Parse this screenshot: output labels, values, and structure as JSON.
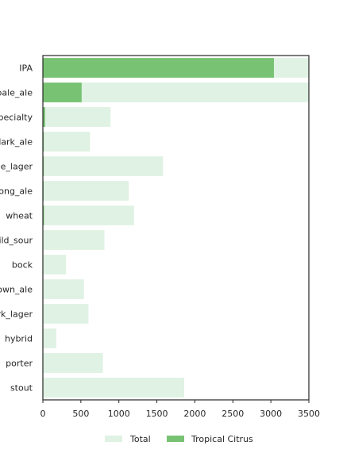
{
  "chart_data": {
    "type": "bar",
    "orientation": "horizontal",
    "categories": [
      "IPA",
      "pale_ale",
      "specialty",
      "dark_ale",
      "pale_lager",
      "strong_ale",
      "wheat",
      "wild_sour",
      "bock",
      "brown_ale",
      "dark_lager",
      "hybrid",
      "porter",
      "stout"
    ],
    "series": [
      {
        "name": "Total",
        "color": "#dff2e3",
        "values": [
          3600,
          3700,
          890,
          620,
          1580,
          1130,
          1200,
          810,
          305,
          540,
          600,
          175,
          790,
          1860
        ]
      },
      {
        "name": "Tropical Citrus",
        "color": "#78c273",
        "values": [
          3040,
          510,
          30,
          12,
          12,
          10,
          15,
          5,
          3,
          3,
          3,
          2,
          2,
          2
        ]
      }
    ],
    "xlim": [
      0,
      3500
    ],
    "xticks": [
      0,
      500,
      1000,
      1500,
      2000,
      2500,
      3000,
      3500
    ],
    "title": "",
    "xlabel": "",
    "ylabel": "",
    "grid": false,
    "legend": "bottom-center"
  }
}
